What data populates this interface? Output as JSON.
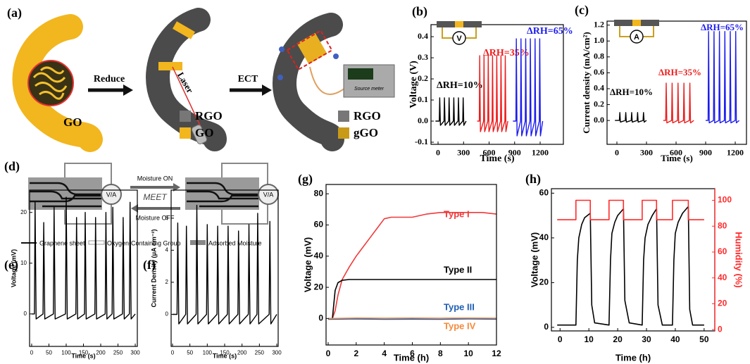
{
  "panel_labels": [
    "(a)",
    "(b)",
    "(c)",
    "(d)",
    "(e)",
    "(f)",
    "(g)",
    "(h)"
  ],
  "scheme_a": {
    "steps": [
      "Reduce",
      "Laser",
      "ECT"
    ],
    "device": "Source meter",
    "legend": [
      [
        "GO"
      ],
      [
        "RGO",
        "GO"
      ],
      [
        "RGO",
        "gGO"
      ]
    ]
  },
  "scheme_d": {
    "arrows": [
      "Moisture ON",
      "MEET",
      "Moisture OFF"
    ],
    "meter": [
      "V/A",
      "V/A"
    ],
    "legend": [
      "Graphene sheet",
      "Oxygen-Containing Group",
      "Adsorbed Moisture"
    ]
  },
  "chart_data": [
    {
      "type": "line",
      "ylabel": "Voltage (V)",
      "xlabel": "Time (s)",
      "annotations": [
        "V"
      ],
      "xlim": [
        -83,
        1473
      ],
      "xticks": [
        0,
        300,
        600,
        900,
        1200
      ],
      "ylim": [
        -0.11,
        0.457
      ],
      "yticks": [
        -0.1,
        {
          "value": 0,
          "label": "0.0"
        },
        0.1,
        0.2,
        0.3,
        0.4
      ],
      "series": [
        {
          "name": "ΔRH=10%",
          "color": "#000000",
          "x": [
            -30,
            15,
            20,
            28,
            70,
            75,
            83,
            125,
            130,
            138,
            180,
            185,
            193,
            235,
            240,
            248,
            290,
            295,
            303,
            330
          ],
          "values": [
            0,
            0,
            0.11,
            -0.02,
            0,
            0.11,
            -0.02,
            0,
            0.11,
            -0.02,
            0,
            0.11,
            -0.02,
            0,
            0.11,
            -0.02,
            0,
            0.11,
            -0.02,
            0
          ]
        },
        {
          "name": "ΔRH=35%",
          "color": "#ee1c1c",
          "x": [
            460,
            485,
            490,
            498,
            535,
            540,
            548,
            585,
            590,
            598,
            635,
            640,
            648,
            685,
            690,
            698,
            735,
            740,
            748,
            785,
            790,
            798,
            820
          ],
          "values": [
            0,
            0,
            0.31,
            -0.05,
            0,
            0.31,
            -0.05,
            0,
            0.31,
            -0.05,
            0,
            0.31,
            -0.05,
            0,
            0.31,
            -0.05,
            0,
            0.31,
            -0.05,
            0,
            0.31,
            -0.05,
            0
          ]
        },
        {
          "name": "ΔRH=65%",
          "color": "#1c1cee",
          "x": [
            880,
            915,
            920,
            928,
            970,
            975,
            983,
            1025,
            1030,
            1038,
            1080,
            1085,
            1093,
            1135,
            1140,
            1148,
            1190,
            1195,
            1203,
            1230
          ],
          "values": [
            0,
            0,
            0.39,
            -0.07,
            0,
            0.39,
            -0.07,
            0,
            0.39,
            -0.07,
            0,
            0.39,
            -0.07,
            0,
            0.39,
            -0.07,
            0,
            0.39,
            -0.07,
            0
          ]
        }
      ]
    },
    {
      "type": "line",
      "ylabel": "Current density (mA/cm²)",
      "xlabel": "Time (s)",
      "annotations": [
        "A"
      ],
      "xlim": [
        -100,
        1314
      ],
      "xticks": [
        0,
        300,
        600,
        900,
        1200
      ],
      "ylim": [
        -0.3,
        1.25
      ],
      "yticks": [
        {
          "value": 0,
          "label": "0.0"
        },
        0.2,
        0.4,
        0.6,
        0.8,
        {
          "value": 1,
          "label": "1.0"
        },
        1.2
      ],
      "series": [
        {
          "name": "ΔRH=10%",
          "color": "#000000",
          "x": [
            -20,
            25,
            30,
            36,
            85,
            90,
            96,
            145,
            150,
            156,
            205,
            210,
            216,
            265,
            270,
            276,
            300
          ],
          "values": [
            0,
            0,
            0.1,
            -0.02,
            0,
            0.1,
            -0.02,
            0,
            0.1,
            -0.02,
            0,
            0.1,
            -0.02,
            0,
            0.1,
            -0.02,
            0
          ]
        },
        {
          "name": "ΔRH=35%",
          "color": "#ee1c1c",
          "x": [
            470,
            495,
            500,
            506,
            555,
            560,
            566,
            615,
            620,
            626,
            675,
            680,
            686,
            735,
            740,
            746,
            780
          ],
          "values": [
            0,
            0,
            0.47,
            -0.03,
            0,
            0.47,
            -0.03,
            0,
            0.47,
            -0.03,
            0,
            0.47,
            -0.03,
            0,
            0.47,
            -0.03,
            0
          ]
        },
        {
          "name": "ΔRH=65%",
          "color": "#1c1cee",
          "x": [
            900,
            925,
            930,
            936,
            980,
            985,
            991,
            1035,
            1040,
            1046,
            1090,
            1095,
            1101,
            1145,
            1150,
            1156,
            1200,
            1205,
            1211,
            1240
          ],
          "values": [
            0,
            0,
            1.12,
            -0.03,
            0,
            1.12,
            -0.03,
            0,
            1.12,
            -0.03,
            0,
            1.12,
            -0.03,
            0,
            1.12,
            -0.03,
            0,
            1.12,
            -0.03,
            0
          ]
        }
      ]
    },
    {
      "type": "line",
      "ylabel": "Voltage (mV)",
      "xlabel": "Time (s)",
      "xlim": [
        -6,
        306
      ],
      "xticks": [
        0,
        50,
        100,
        150,
        200,
        250,
        300
      ],
      "ylim": [
        -6.4,
        24.4
      ],
      "yticks": [
        0,
        10,
        20
      ],
      "series": [
        {
          "color": "#000000",
          "x": [
            0,
            8,
            10,
            13,
            33,
            35,
            38,
            63,
            65,
            68,
            98,
            100,
            103,
            128,
            130,
            133,
            153,
            155,
            158,
            183,
            185,
            188,
            213,
            215,
            218,
            233,
            235,
            238,
            263,
            265,
            268,
            283,
            285,
            288,
            300
          ],
          "values": [
            0,
            0,
            22,
            -1,
            0,
            18,
            -1,
            0,
            21,
            -1,
            0,
            23,
            -1,
            0,
            19,
            -1,
            0,
            20,
            -1,
            0,
            19,
            -1,
            0,
            20,
            -1,
            0,
            21,
            -1,
            0,
            19,
            -1,
            0,
            22,
            -1,
            0
          ]
        }
      ]
    },
    {
      "type": "line",
      "ylabel": "Current Density (μA cm⁻²)",
      "xlabel": "Time (s)",
      "xlim": [
        -4,
        304
      ],
      "xticks": [
        0,
        50,
        100,
        150,
        200,
        250,
        300
      ],
      "ylim": [
        -2,
        7.75
      ],
      "yticks": [
        0,
        2,
        4,
        6
      ],
      "series": [
        {
          "color": "#000000",
          "x": [
            0,
            13,
            15,
            18,
            38,
            40,
            43,
            68,
            70,
            73,
            98,
            100,
            103,
            128,
            130,
            133,
            158,
            160,
            163,
            188,
            190,
            193,
            218,
            220,
            223,
            243,
            245,
            248,
            278,
            280,
            283,
            300
          ],
          "values": [
            0,
            0,
            5.7,
            -0.6,
            0,
            5.5,
            -0.6,
            0,
            6.8,
            -0.6,
            0,
            5.6,
            -0.6,
            0,
            5.5,
            -0.6,
            0,
            5.5,
            -0.6,
            0,
            5.2,
            -0.6,
            0,
            5.6,
            -0.6,
            0,
            6.3,
            -0.6,
            0,
            5.8,
            -0.6,
            0
          ]
        }
      ]
    },
    {
      "type": "line",
      "ylabel": "Voltage (mV)",
      "xlabel": "Time (h)",
      "xlim": [
        -0.15,
        12
      ],
      "xticks": [
        0,
        2,
        4,
        6,
        8,
        10,
        12
      ],
      "ylim": [
        -17,
        86
      ],
      "yticks": [
        0,
        20,
        40,
        60,
        80
      ],
      "series": [
        {
          "name": "Type I",
          "color": "#f03a3a",
          "x": [
            0,
            0.3,
            0.5,
            0.7,
            1,
            1.5,
            2,
            2.5,
            3,
            3.5,
            4,
            4.5,
            5,
            6,
            7,
            8,
            9,
            10,
            11,
            12
          ],
          "values": [
            0,
            0,
            5,
            15,
            25,
            33,
            40,
            46,
            52,
            58,
            64,
            65,
            65,
            65,
            67,
            68,
            68,
            68,
            68,
            67
          ]
        },
        {
          "name": "Type II",
          "color": "#000000",
          "x": [
            0,
            0.3,
            0.5,
            0.7,
            1,
            1.5,
            2,
            4,
            6,
            8,
            10,
            12
          ],
          "values": [
            0,
            0,
            18,
            23,
            24.5,
            25,
            25,
            25,
            25,
            25,
            25,
            25
          ]
        },
        {
          "name": "Type III",
          "color": "#1f5fb4",
          "x": [
            0,
            2,
            4,
            6,
            8,
            10,
            12
          ],
          "values": [
            -0.5,
            -0.3,
            -0.5,
            -0.4,
            -0.5,
            -0.3,
            -0.4
          ]
        },
        {
          "name": "Type IV",
          "color": "#f58a3c",
          "x": [
            0,
            2,
            4,
            6,
            8,
            10,
            12
          ],
          "values": [
            0,
            0.3,
            0.2,
            0.3,
            0.2,
            0.3,
            0.2
          ]
        }
      ]
    },
    {
      "type": "line",
      "ylabel": "Voltage (mV)",
      "y2label": "Humidity (%)",
      "xlabel": "Time (h)",
      "xlim": [
        -3,
        53.7
      ],
      "xticks": [
        0,
        10,
        20,
        30,
        40,
        50
      ],
      "ylim": [
        -1.6,
        62
      ],
      "yticks": [
        0,
        20,
        40,
        60
      ],
      "y2lim": [
        -1,
        109
      ],
      "y2ticks": [
        0,
        20,
        40,
        60,
        80,
        100
      ],
      "series": [
        {
          "color": "#000000",
          "x": [
            -1,
            5.5,
            6,
            6.5,
            7.5,
            8.5,
            10.5,
            11,
            12,
            17,
            17.5,
            18,
            19,
            20,
            22,
            22.5,
            24,
            28.5,
            29,
            29.5,
            30.5,
            32,
            33.5,
            34,
            35.5,
            39,
            39.5,
            40,
            41,
            42.5,
            44.5,
            45,
            46,
            50
          ],
          "values": [
            1,
            1,
            30,
            40,
            46,
            49,
            51,
            10,
            2,
            1,
            30,
            42,
            47,
            50,
            53,
            12,
            2,
            1,
            30,
            40,
            46,
            50,
            53,
            10,
            1,
            1,
            30,
            42,
            47,
            51,
            54,
            8,
            1,
            1
          ]
        },
        {
          "color": "#ff2a2a",
          "axis": "y2",
          "x": [
            -1,
            5.5,
            5.5,
            10.5,
            10.5,
            17,
            17,
            22,
            22,
            28.5,
            28.5,
            33.5,
            33.5,
            39,
            39,
            44.5,
            44.5,
            50
          ],
          "values": [
            85,
            85,
            100,
            100,
            85,
            85,
            100,
            100,
            85,
            85,
            100,
            100,
            85,
            85,
            100,
            100,
            85,
            85
          ]
        }
      ]
    }
  ]
}
